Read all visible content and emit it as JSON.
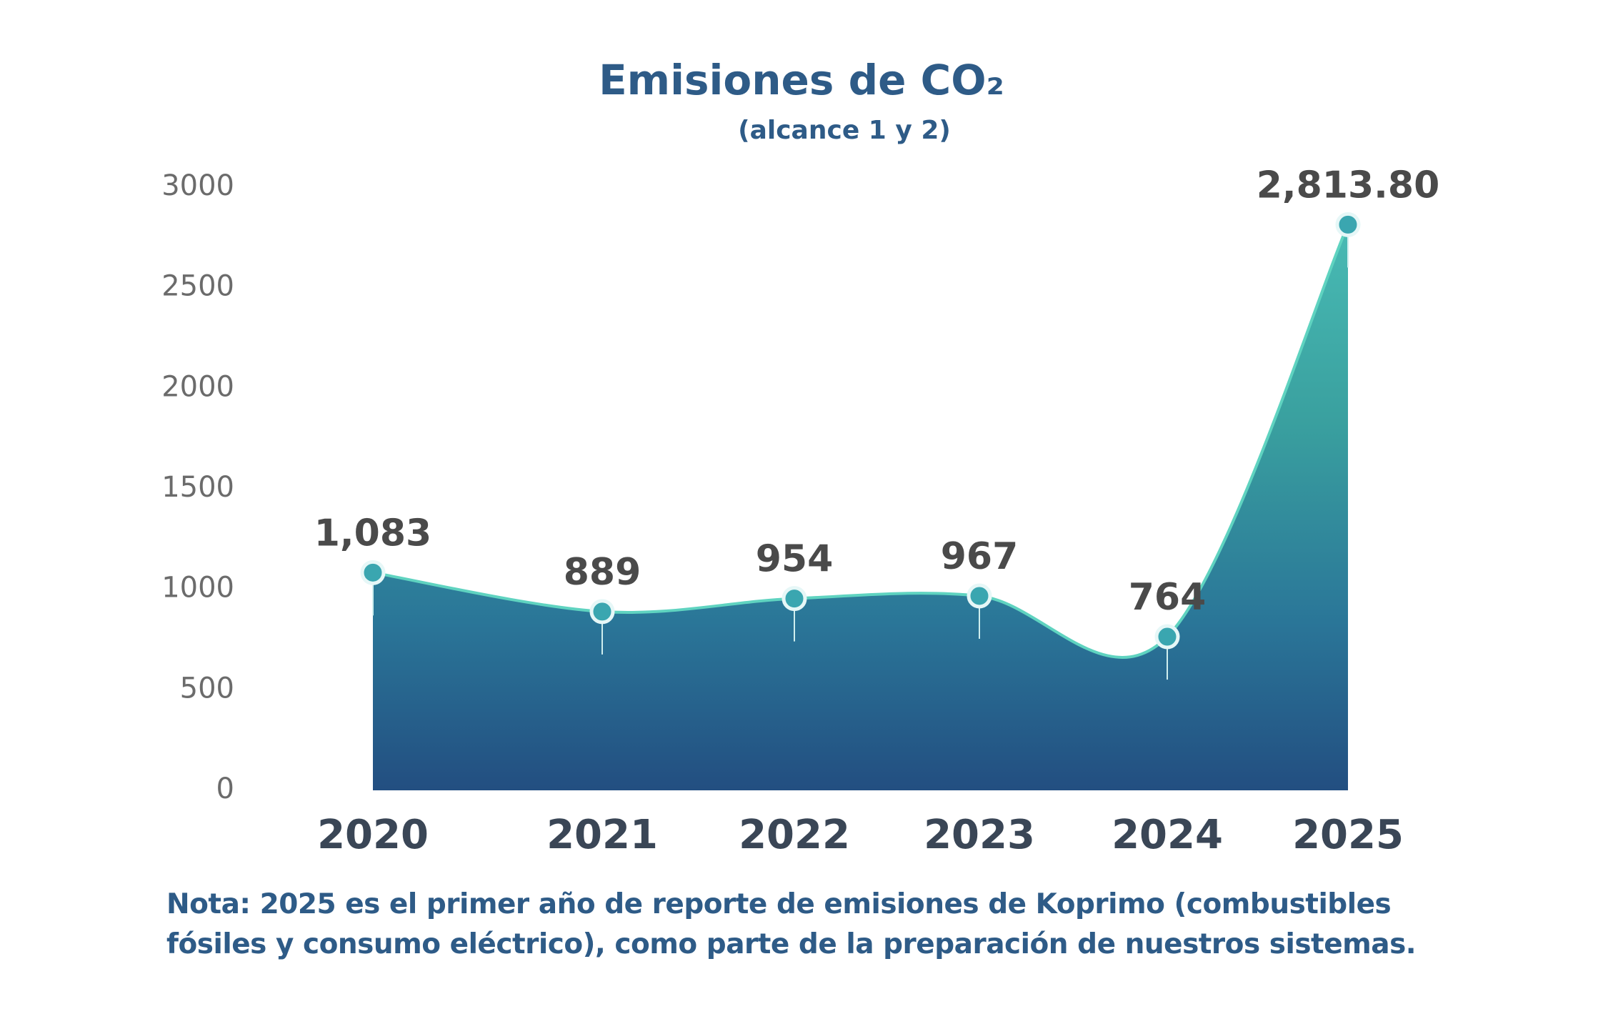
{
  "chart_data": {
    "type": "area",
    "title": "Emisiones de CO₂",
    "subtitle": "(alcance 1 y 2)",
    "categories": [
      "2020",
      "2021",
      "2022",
      "2023",
      "2024",
      "2025"
    ],
    "values": [
      1083,
      889,
      954,
      967,
      764,
      2813.8
    ],
    "value_labels": [
      "1,083",
      "889",
      "954",
      "967",
      "764",
      "2,813.80"
    ],
    "color": "#2a8f9a",
    "ylim": [
      0,
      3000
    ],
    "yticks": [
      0,
      500,
      1000,
      1500,
      2000,
      2500,
      3000
    ],
    "grid": false,
    "note": "Nota: 2025 es el primer año de reporte de emisiones de Koprimo (combustibles fósiles y consumo eléctrico), como parte de la preparación de nuestros sistemas."
  }
}
